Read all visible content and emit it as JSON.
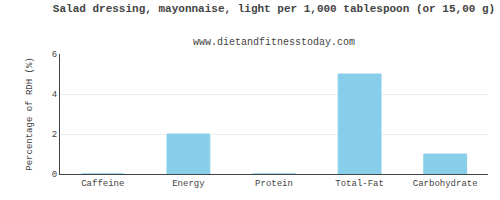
{
  "chart_data": {
    "type": "bar",
    "title": "Salad dressing, mayonnaise, light per 1,000 tablespoon (or 15,00 g)",
    "subtitle": "www.dietandfitnesstoday.com",
    "categories": [
      "Caffeine",
      "Energy",
      "Protein",
      "Total-Fat",
      "Carbohydrate"
    ],
    "values": [
      0,
      2.0,
      0,
      5.0,
      1.0
    ],
    "color": "#87CEEB",
    "ylabel": "Percentage of RDH (%)",
    "ylim": [
      0,
      6
    ],
    "yticks": [
      0,
      2,
      4,
      6
    ],
    "grid": true
  }
}
